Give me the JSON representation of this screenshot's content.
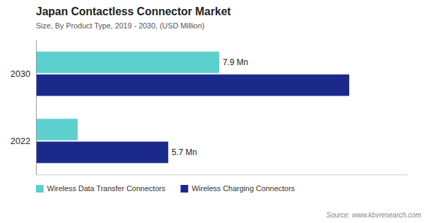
{
  "chart_data": {
    "type": "bar",
    "orientation": "horizontal",
    "title": "Japan Contactless Connector Market",
    "subtitle": "Size, By Product Type,  2019 - 2030, (USD Million)",
    "source": "Source: www.kbvresearch.com",
    "categories": [
      "2030",
      "2022"
    ],
    "series": [
      {
        "name": "Wireless Data Transfer Connectors",
        "color": "#5ECFCF",
        "values": [
          7.9,
          1.8
        ],
        "value_labels": [
          "7.9 Mn",
          null
        ]
      },
      {
        "name": "Wireless Charging Connectors",
        "color": "#1B2A8A",
        "values": [
          13.5,
          5.7
        ],
        "value_labels": [
          null,
          "5.7 Mn"
        ]
      }
    ],
    "xlim": [
      0,
      16
    ],
    "data_labels": true,
    "tick_labels": "y",
    "grid": false,
    "legend": "bottom"
  }
}
